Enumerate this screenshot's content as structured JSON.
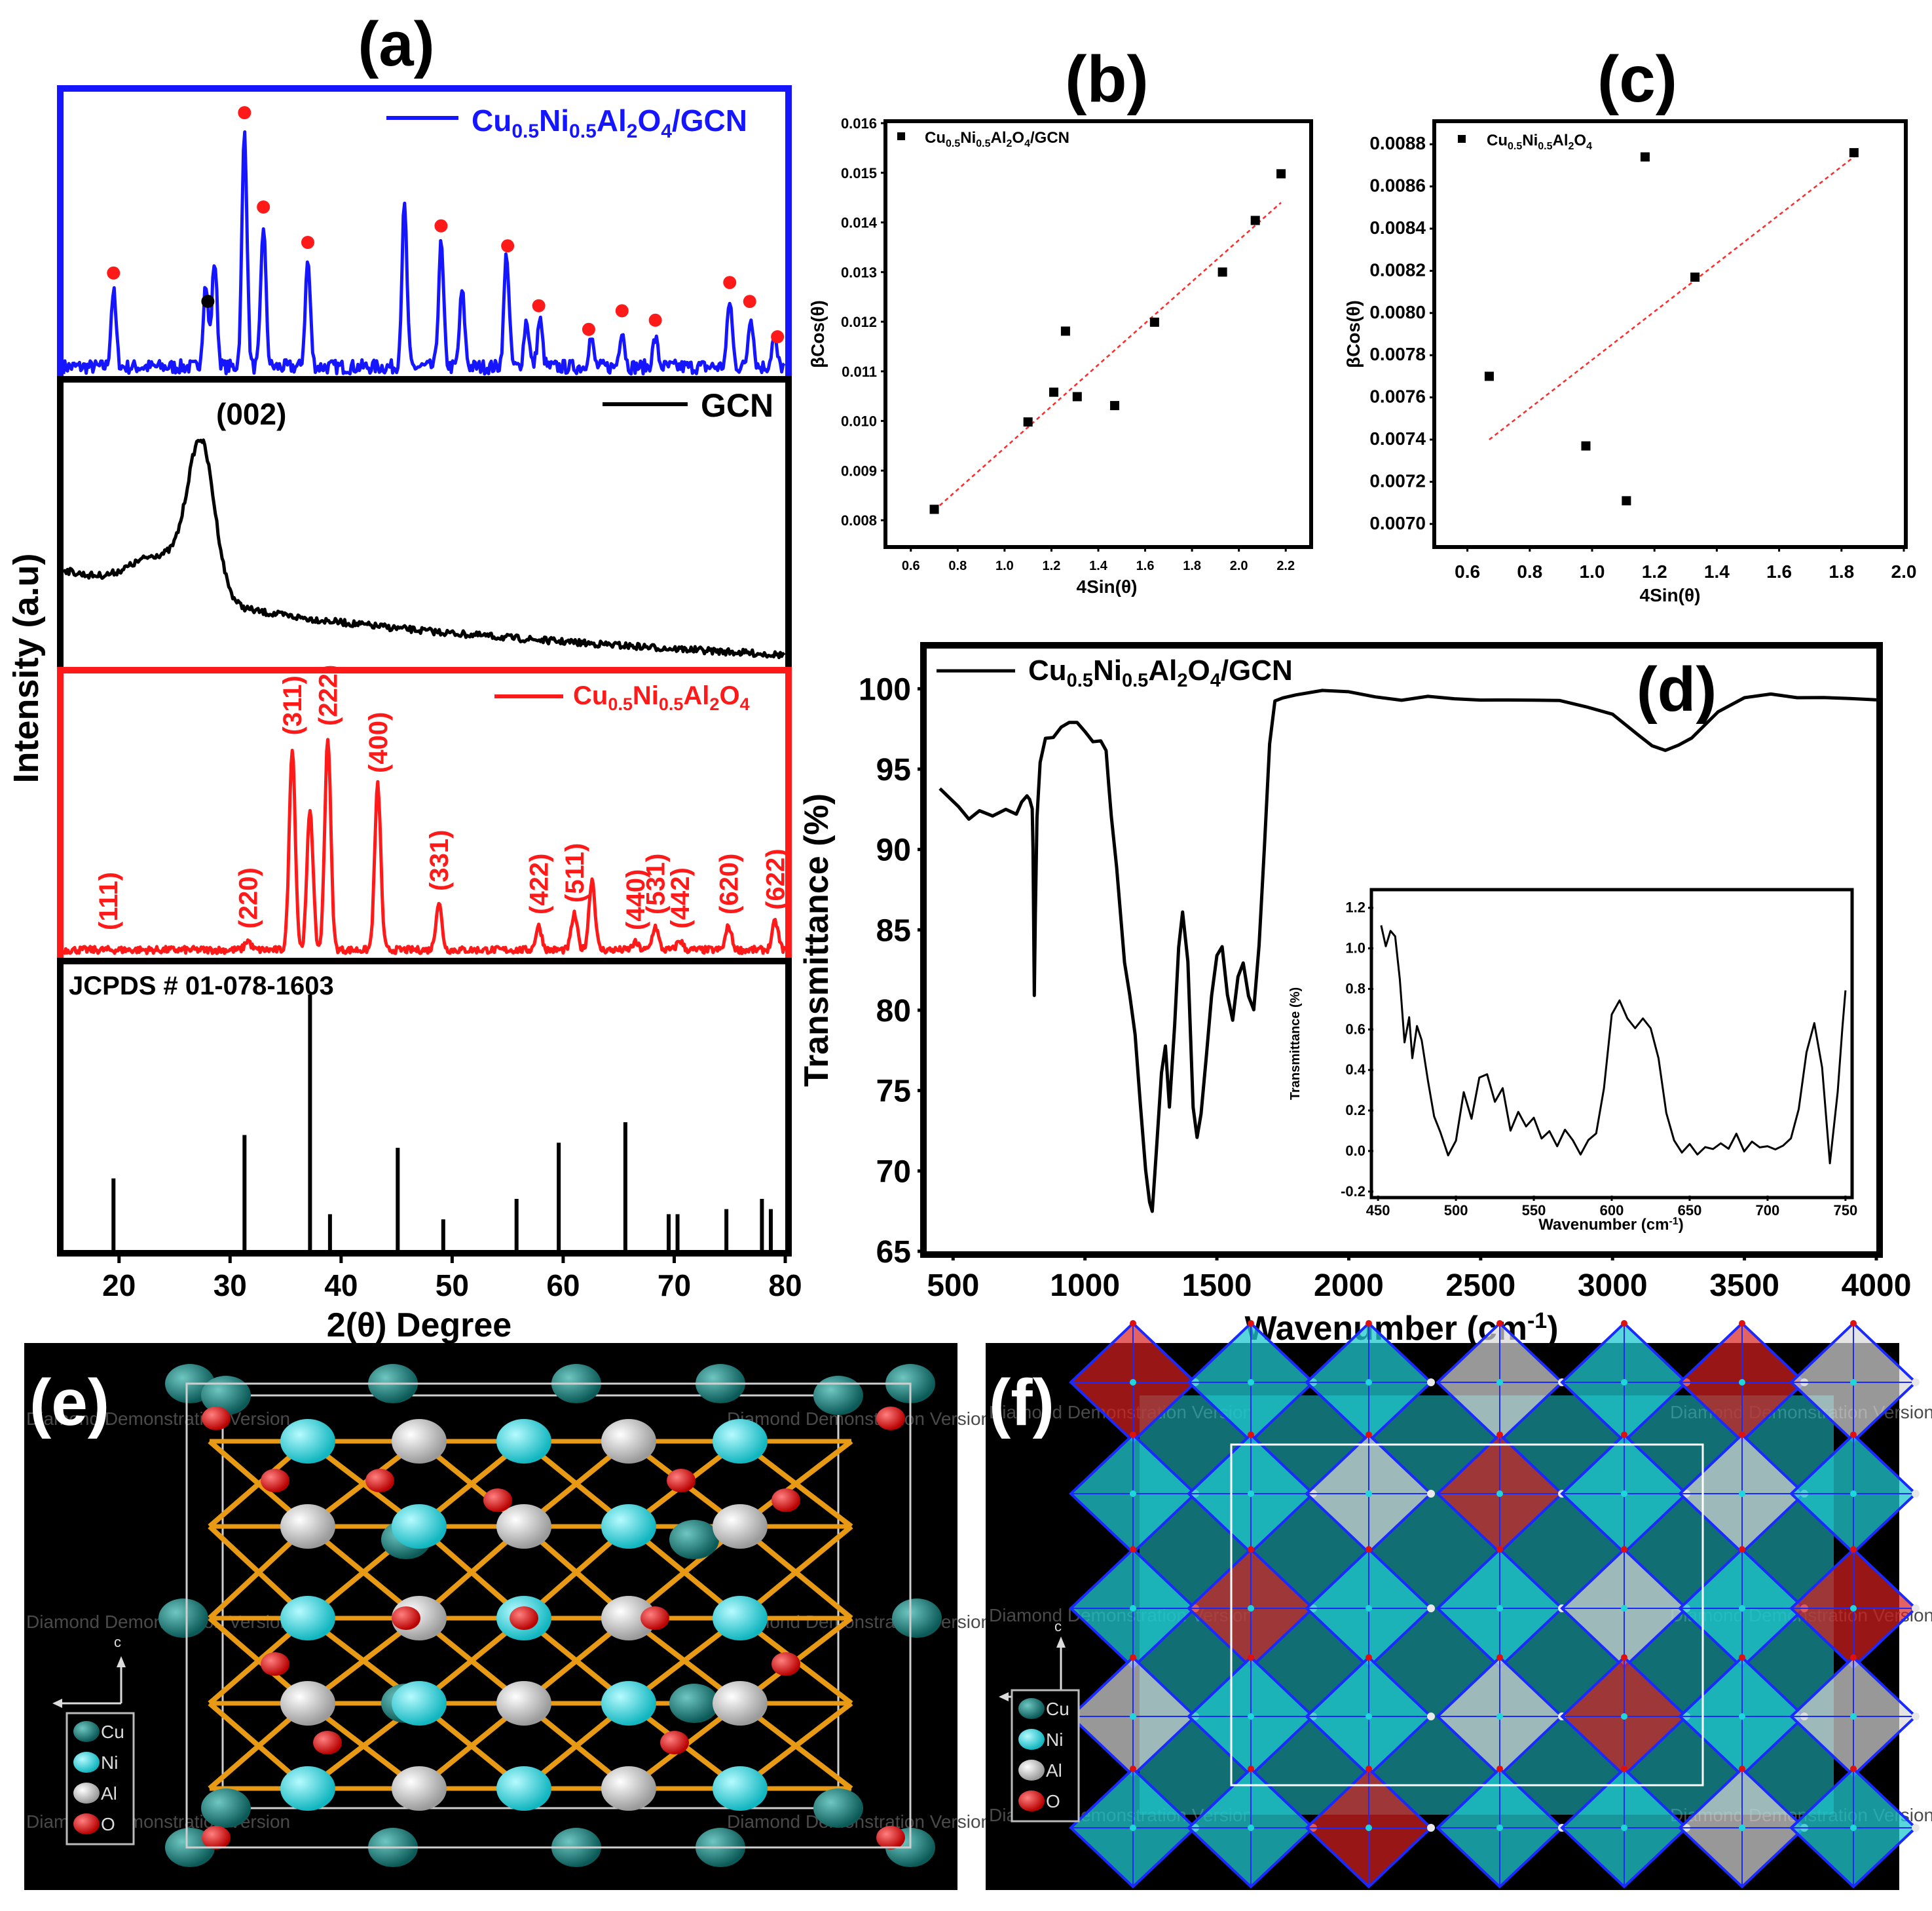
{
  "panel_labels": {
    "a": "(a)",
    "b": "(b)",
    "c": "(c)",
    "d": "(d)",
    "e": "(e)",
    "f": "(f)"
  },
  "colors": {
    "blue": "#1515ff",
    "red": "#ff1a1a",
    "black": "#000000",
    "fit_line": "#ff2a2a",
    "cu": "#127b78",
    "ni": "#1fd6dd",
    "al": "#d9d9d9",
    "o": "#e01010",
    "bond": "#e89a14",
    "poly_cyan": "#1fc9d0",
    "poly_red": "#d92020",
    "poly_edge": "#1a2aff"
  },
  "labels": {
    "a_ylabel": "Intensity (a.u)",
    "a_xlabel": "2(θ) Degree",
    "a_blue_legend": "Cu0.5Ni0.5Al2O4/GCN",
    "a_gcn_legend": "GCN",
    "a_gcn_peak": "(002)",
    "a_red_legend": "Cu0.5Ni0.5Al2O4",
    "a_jcpds": "JCPDS # 01-078-1603",
    "b_legend": "Cu0.5Ni0.5Al2O4/GCN",
    "b_xlabel": "4Sin(θ)",
    "b_ylabel": "βCos(θ)",
    "c_legend": "Cu0.5Ni0.5Al2O4",
    "c_xlabel": "4Sin(θ)",
    "c_ylabel": "βCos(θ)",
    "d_legend": "Cu0.5Ni0.5Al2O4/GCN",
    "d_ylabel": "Transmittance (%)",
    "d_xlabel": "Wavenumber (cm-1)",
    "d_inset_ylabel": "Transmittance (%)",
    "d_inset_xlabel": "Wavenumber (cm-1)",
    "e_legend": [
      "Cu",
      "Ni",
      "Al",
      "O"
    ],
    "f_legend": [
      "Cu",
      "Ni",
      "Al",
      "O"
    ],
    "axis_c": "c",
    "watermark": "Diamond Demonstration Version"
  },
  "chart_data": [
    {
      "panel": "a",
      "type": "line",
      "xlim": [
        15,
        80
      ],
      "xticks": [
        20,
        30,
        40,
        50,
        60,
        70,
        80
      ],
      "series": [
        {
          "name": "Cu0.5Ni0.5Al2O4/GCN",
          "color": "#1515ff",
          "peaks": [
            {
              "x": 19.5,
              "h": 0.32
            },
            {
              "x": 27.8,
              "h": 0.35
            },
            {
              "x": 28.6,
              "h": 0.45
            },
            {
              "x": 31.3,
              "h": 1.0
            },
            {
              "x": 33.0,
              "h": 0.6
            },
            {
              "x": 37.0,
              "h": 0.45
            },
            {
              "x": 45.7,
              "h": 0.68
            },
            {
              "x": 49.0,
              "h": 0.52
            },
            {
              "x": 50.9,
              "h": 0.32
            },
            {
              "x": 54.9,
              "h": 0.48
            },
            {
              "x": 56.7,
              "h": 0.2
            },
            {
              "x": 57.9,
              "h": 0.2
            },
            {
              "x": 62.5,
              "h": 0.12
            },
            {
              "x": 65.3,
              "h": 0.16
            },
            {
              "x": 68.3,
              "h": 0.12
            },
            {
              "x": 75.0,
              "h": 0.28
            },
            {
              "x": 76.9,
              "h": 0.22
            },
            {
              "x": 79.0,
              "h": 0.12
            }
          ],
          "red_dot_markers": [
            19.5,
            31.3,
            33.0,
            37.0,
            49.0,
            55.0,
            57.8,
            62.3,
            65.3,
            68.3,
            75.0,
            76.8,
            79.3
          ],
          "black_dot_markers": [
            28.0
          ]
        },
        {
          "name": "GCN",
          "color": "#000000",
          "peak_x": 27.4
        },
        {
          "name": "Cu0.5Ni0.5Al2O4",
          "color": "#ff1a1a",
          "peaks": [
            {
              "x": 31.6,
              "h": 0.04,
              "label": "(220)"
            },
            {
              "x": 35.6,
              "h": 0.86,
              "label": "(311)"
            },
            {
              "x": 37.2,
              "h": 0.6
            },
            {
              "x": 38.8,
              "h": 0.9,
              "label": "(222)"
            },
            {
              "x": 43.3,
              "h": 0.7,
              "label": "(400)"
            },
            {
              "x": 48.8,
              "h": 0.2,
              "label": "(331)"
            },
            {
              "x": 57.8,
              "h": 0.1,
              "label": "(422)"
            },
            {
              "x": 61.0,
              "h": 0.15,
              "label": "(511)"
            },
            {
              "x": 62.6,
              "h": 0.3
            },
            {
              "x": 66.5,
              "h": 0.03,
              "label": "(440)"
            },
            {
              "x": 68.3,
              "h": 0.1,
              "label": "(531)"
            },
            {
              "x": 70.5,
              "h": 0.04,
              "label": "(442)"
            },
            {
              "x": 74.9,
              "h": 0.1,
              "label": "(620)"
            },
            {
              "x": 79.1,
              "h": 0.12,
              "label": "(622)"
            }
          ],
          "peak_labels_extra": [
            {
              "x": 19.0,
              "label": "(111)"
            }
          ]
        }
      ],
      "reference_sticks": {
        "x": [
          19.5,
          31.3,
          37.2,
          39.0,
          45.1,
          49.2,
          55.8,
          59.6,
          65.6,
          69.5,
          70.3,
          74.7,
          77.9,
          78.7
        ],
        "h": [
          0.28,
          0.45,
          1.0,
          0.14,
          0.4,
          0.12,
          0.2,
          0.42,
          0.5,
          0.14,
          0.14,
          0.16,
          0.2,
          0.16
        ]
      }
    },
    {
      "panel": "b",
      "type": "scatter",
      "xlim": [
        0.5,
        2.3
      ],
      "ylim": [
        0.0075,
        0.016
      ],
      "xticks": [
        0.6,
        0.8,
        1.0,
        1.2,
        1.4,
        1.6,
        1.8,
        2.0,
        2.2
      ],
      "yticks": [
        0.008,
        0.009,
        0.01,
        0.011,
        0.012,
        0.013,
        0.014,
        0.015,
        0.016
      ],
      "x": [
        0.7,
        1.1,
        1.21,
        1.26,
        1.31,
        1.47,
        1.64,
        1.93,
        2.07,
        2.18
      ],
      "y": [
        0.00822,
        0.00998,
        0.01058,
        0.01181,
        0.01049,
        0.01031,
        0.01199,
        0.013,
        0.01404,
        0.01498
      ],
      "fit": {
        "x": [
          0.7,
          2.18
        ],
        "y": [
          0.0082,
          0.0144
        ]
      }
    },
    {
      "panel": "c",
      "type": "scatter",
      "xlim": [
        0.5,
        2.0
      ],
      "ylim": [
        0.0069,
        0.0089
      ],
      "xticks": [
        0.6,
        0.8,
        1.0,
        1.2,
        1.4,
        1.6,
        1.8,
        2.0
      ],
      "yticks": [
        0.007,
        0.0072,
        0.0074,
        0.0076,
        0.0078,
        0.008,
        0.0082,
        0.0084,
        0.0086,
        0.0088
      ],
      "x": [
        0.67,
        0.98,
        1.11,
        1.17,
        1.33,
        1.84
      ],
      "y": [
        0.0077,
        0.00737,
        0.00711,
        0.00874,
        0.00817,
        0.00876
      ],
      "fit": {
        "x": [
          0.67,
          1.84
        ],
        "y": [
          0.0074,
          0.00874
        ]
      }
    },
    {
      "panel": "d",
      "type": "line",
      "xlim": [
        450,
        4000
      ],
      "ylim": [
        65,
        103
      ],
      "xticks": [
        500,
        1000,
        1500,
        2000,
        2500,
        3000,
        3500,
        4000
      ],
      "yticks": [
        65,
        70,
        75,
        80,
        85,
        90,
        95,
        100
      ],
      "x": [
        450,
        480,
        520,
        560,
        600,
        650,
        700,
        740,
        760,
        780,
        790,
        800,
        803,
        808,
        812,
        818,
        830,
        850,
        880,
        910,
        940,
        970,
        1000,
        1030,
        1060,
        1080,
        1090,
        1100,
        1120,
        1150,
        1170,
        1190,
        1210,
        1230,
        1245,
        1255,
        1270,
        1290,
        1305,
        1320,
        1340,
        1355,
        1370,
        1390,
        1410,
        1425,
        1440,
        1460,
        1480,
        1500,
        1520,
        1540,
        1560,
        1580,
        1600,
        1620,
        1640,
        1660,
        1680,
        1700,
        1720,
        1750,
        1800,
        1900,
        2000,
        2100,
        2200,
        2300,
        2400,
        2500,
        2600,
        2700,
        2800,
        2900,
        3000,
        3100,
        3150,
        3200,
        3250,
        3300,
        3400,
        3500,
        3600,
        3700,
        3800,
        3900,
        4000
      ],
      "y": [
        93.8,
        93.2,
        92.6,
        92.0,
        92.5,
        92.0,
        92.4,
        92.3,
        93.0,
        93.3,
        93.1,
        92.5,
        90.0,
        81.0,
        86.0,
        92.0,
        95.5,
        96.8,
        97.0,
        97.6,
        98.0,
        97.9,
        97.3,
        96.8,
        96.7,
        96.2,
        94.0,
        92.0,
        89.0,
        83.0,
        81.0,
        78.5,
        74.0,
        70.0,
        68.0,
        67.5,
        71.0,
        76.0,
        77.8,
        74.0,
        79.0,
        84.0,
        86.0,
        83.0,
        74.0,
        72.0,
        73.5,
        77.0,
        81.0,
        83.5,
        84.0,
        81.0,
        79.5,
        82.0,
        83.0,
        81.0,
        80.0,
        84.0,
        90.0,
        96.5,
        99.2,
        99.5,
        99.6,
        99.8,
        99.7,
        99.5,
        99.4,
        99.5,
        99.4,
        99.3,
        99.3,
        99.3,
        99.2,
        99.0,
        98.5,
        97.2,
        96.5,
        96.2,
        96.5,
        97.0,
        98.5,
        99.5,
        99.6,
        99.5,
        99.5,
        99.4,
        99.3
      ],
      "inset": {
        "xlim": [
          450,
          750
        ],
        "ylim": [
          -0.2,
          1.25
        ],
        "xticks": [
          450,
          500,
          550,
          600,
          650,
          700,
          750
        ],
        "yticks": [
          -0.2,
          0.0,
          0.2,
          0.4,
          0.6,
          0.8,
          1.0,
          1.2
        ],
        "x": [
          452,
          455,
          458,
          461,
          464,
          467,
          470,
          472,
          475,
          478,
          482,
          486,
          490,
          495,
          500,
          505,
          510,
          515,
          520,
          525,
          530,
          535,
          540,
          545,
          550,
          555,
          560,
          565,
          570,
          575,
          580,
          585,
          590,
          595,
          600,
          605,
          610,
          615,
          620,
          625,
          630,
          635,
          640,
          645,
          650,
          655,
          660,
          665,
          670,
          675,
          680,
          685,
          690,
          695,
          700,
          705,
          710,
          715,
          720,
          725,
          730,
          735,
          740,
          745,
          748,
          750
        ],
        "y": [
          1.12,
          1.0,
          1.08,
          1.05,
          0.85,
          0.55,
          0.65,
          0.45,
          0.62,
          0.55,
          0.35,
          0.18,
          0.08,
          -0.02,
          0.05,
          0.3,
          0.15,
          0.35,
          0.38,
          0.25,
          0.3,
          0.1,
          0.18,
          0.12,
          0.15,
          0.05,
          0.1,
          0.02,
          0.12,
          0.05,
          -0.02,
          0.05,
          0.08,
          0.3,
          0.68,
          0.74,
          0.65,
          0.62,
          0.66,
          0.6,
          0.45,
          0.2,
          0.05,
          0.0,
          0.02,
          -0.03,
          0.02,
          0.0,
          0.03,
          0.01,
          0.08,
          0.0,
          0.04,
          0.01,
          0.03,
          0.0,
          0.02,
          0.05,
          0.2,
          0.5,
          0.64,
          0.4,
          -0.05,
          0.3,
          0.6,
          0.78
        ]
      }
    }
  ]
}
